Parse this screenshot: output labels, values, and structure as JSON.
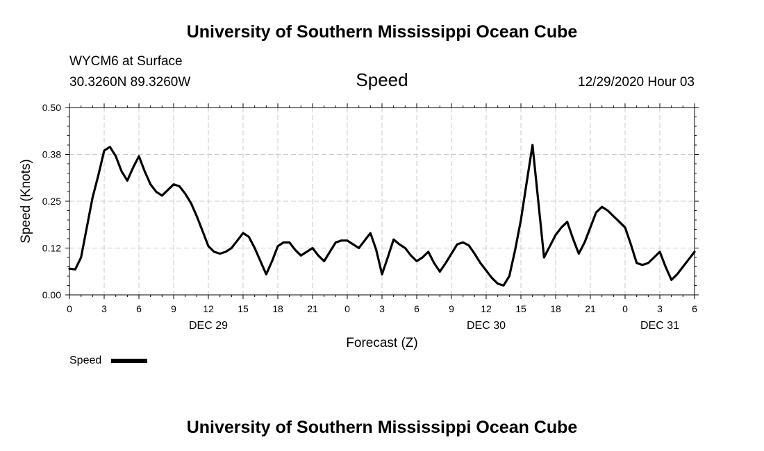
{
  "page": {
    "title_top": "University of Southern Mississippi Ocean Cube",
    "title_bottom": "University of Southern Mississippi Ocean Cube",
    "station_line": "WYCM6 at Surface",
    "coords_line": "30.3260N 89.3260W",
    "timestamp": "12/29/2020 Hour 03"
  },
  "chart_data": {
    "type": "line",
    "title": "Speed",
    "xlabel": "Forecast (Z)",
    "ylabel": "Speed (Knots)",
    "ylim": [
      0,
      0.5
    ],
    "xlim": [
      0,
      54
    ],
    "x_units": "hours since 2020-12-29 00Z",
    "y_ticks": [
      "0.00",
      "0.12",
      "0.25",
      "0.38",
      "0.50"
    ],
    "y_tick_values": [
      0,
      0.125,
      0.25,
      0.375,
      0.5
    ],
    "x_ticks": [
      "0",
      "3",
      "6",
      "9",
      "12",
      "15",
      "18",
      "21",
      "0",
      "3",
      "6",
      "9",
      "12",
      "15",
      "18",
      "21",
      "0",
      "3",
      "6"
    ],
    "x_tick_values": [
      0,
      3,
      6,
      9,
      12,
      15,
      18,
      21,
      24,
      27,
      30,
      33,
      36,
      39,
      42,
      45,
      48,
      51,
      54
    ],
    "day_labels": [
      {
        "label": "DEC 29",
        "x": 12
      },
      {
        "label": "DEC 30",
        "x": 36
      },
      {
        "label": "DEC 31",
        "x": 51
      }
    ],
    "grid": true,
    "legend": {
      "position": "bottom-left"
    },
    "series": [
      {
        "name": "Speed",
        "color": "#000000",
        "x": [
          0,
          0.5,
          1,
          1.5,
          2,
          2.5,
          3,
          3.5,
          4,
          4.5,
          5,
          5.5,
          6,
          6.5,
          7,
          7.5,
          8,
          8.5,
          9,
          9.5,
          10,
          10.5,
          11,
          11.5,
          12,
          12.5,
          13,
          13.5,
          14,
          14.5,
          15,
          15.5,
          16,
          16.5,
          17,
          17.5,
          18,
          18.5,
          19,
          19.5,
          20,
          20.5,
          21,
          21.5,
          22,
          22.5,
          23,
          23.5,
          24,
          24.5,
          25,
          25.5,
          26,
          26.5,
          27,
          27.5,
          28,
          28.5,
          29,
          29.5,
          30,
          30.5,
          31,
          31.5,
          32,
          32.5,
          33,
          33.5,
          34,
          34.5,
          35,
          35.5,
          36,
          36.5,
          37,
          37.5,
          38,
          38.5,
          39,
          39.5,
          40,
          40.5,
          41,
          41.5,
          42,
          42.5,
          43,
          43.5,
          44,
          44.5,
          45,
          45.5,
          46,
          46.5,
          47,
          47.5,
          48,
          48.5,
          49,
          49.5,
          50,
          50.5,
          51,
          51.5,
          52,
          52.5,
          53,
          53.5,
          54
        ],
        "values": [
          0.07,
          0.068,
          0.1,
          0.18,
          0.26,
          0.32,
          0.385,
          0.395,
          0.37,
          0.33,
          0.305,
          0.34,
          0.37,
          0.33,
          0.295,
          0.275,
          0.265,
          0.28,
          0.295,
          0.29,
          0.27,
          0.245,
          0.21,
          0.17,
          0.13,
          0.115,
          0.11,
          0.115,
          0.125,
          0.145,
          0.165,
          0.155,
          0.125,
          0.09,
          0.055,
          0.09,
          0.13,
          0.14,
          0.14,
          0.12,
          0.105,
          0.115,
          0.125,
          0.105,
          0.09,
          0.115,
          0.14,
          0.145,
          0.145,
          0.135,
          0.125,
          0.145,
          0.165,
          0.12,
          0.055,
          0.1,
          0.148,
          0.135,
          0.125,
          0.105,
          0.09,
          0.1,
          0.115,
          0.085,
          0.062,
          0.085,
          0.11,
          0.135,
          0.14,
          0.132,
          0.11,
          0.085,
          0.065,
          0.045,
          0.03,
          0.025,
          0.05,
          0.12,
          0.2,
          0.3,
          0.4,
          0.25,
          0.1,
          0.13,
          0.16,
          0.18,
          0.195,
          0.15,
          0.11,
          0.14,
          0.18,
          0.22,
          0.235,
          0.225,
          0.21,
          0.195,
          0.18,
          0.135,
          0.085,
          0.08,
          0.085,
          0.1,
          0.115,
          0.075,
          0.04,
          0.055,
          0.075,
          0.095,
          0.115
        ]
      }
    ]
  }
}
